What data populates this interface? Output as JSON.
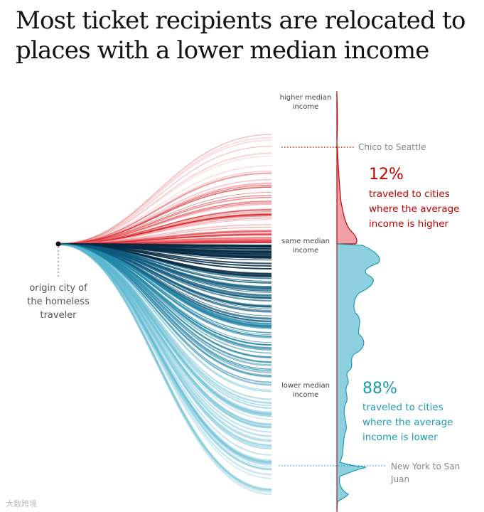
{
  "title": "Most ticket recipients are relocated to places with a lower median income",
  "colors": {
    "higher": "#c70000",
    "higher_fill": "#f0a0a6",
    "lower": "#1b9bb5",
    "lower_fill": "#8fd0e0",
    "lower_dark": "#052b45",
    "annotation_gray": "#888888"
  },
  "labels": {
    "origin": [
      "origin city of",
      "the homeless",
      "traveler"
    ],
    "higher_median": [
      "higher median",
      "income"
    ],
    "same_median": [
      "same median",
      "income"
    ],
    "lower_median": [
      "lower median",
      "income"
    ],
    "example_higher": "Chico to Seattle",
    "example_lower": [
      "New York to San",
      "Juan"
    ]
  },
  "annotations": {
    "higher_pct": "12%",
    "higher_text": [
      "traveled to cities",
      "where the average",
      "income is higher"
    ],
    "lower_pct": "88%",
    "lower_text": [
      "traveled to cities",
      "where the average",
      "income is lower"
    ]
  },
  "watermark": "大数跨境",
  "chart_data": {
    "type": "area",
    "description_axis": "destination median income relative to origin",
    "categories": [
      "higher",
      "lower"
    ],
    "values": [
      12,
      88
    ],
    "unit": "%"
  }
}
